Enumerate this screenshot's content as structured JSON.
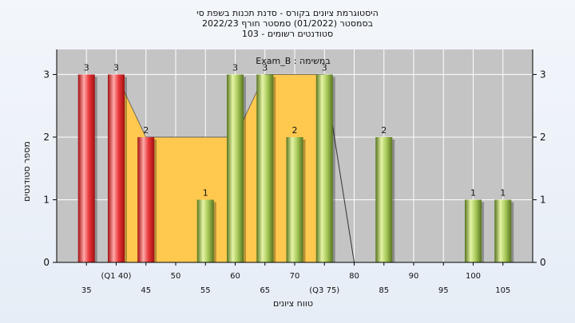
{
  "titles": [
    "היסטוגרמת ציונים בקורס - סדנת תכנות בשפת סי",
    "בסמסטר  (01/2022)  סמסטר חורף  2022/23",
    "סטודנטים רשומים - 103"
  ],
  "chart_data": {
    "type": "bar",
    "legend_text": "Exam_B : במשימה",
    "xlabel": "טווח ציונים",
    "ylabel": "מספר סטודנטים",
    "ylim": [
      0,
      3.4
    ],
    "yticks": [
      0,
      1,
      2,
      3
    ],
    "xlim": [
      30,
      110
    ],
    "x_tick_labels": [
      {
        "x": 35,
        "label": "35",
        "row": 2
      },
      {
        "x": 40,
        "label": "(Q1 40)",
        "row": 1
      },
      {
        "x": 45,
        "label": "45",
        "row": 2
      },
      {
        "x": 50,
        "label": "50",
        "row": 1
      },
      {
        "x": 55,
        "label": "55",
        "row": 2
      },
      {
        "x": 60,
        "label": "60",
        "row": 1
      },
      {
        "x": 65,
        "label": "65",
        "row": 2
      },
      {
        "x": 70,
        "label": "70",
        "row": 1
      },
      {
        "x": 75,
        "label": "(Q3 75)",
        "row": 2
      },
      {
        "x": 80,
        "label": "80",
        "row": 1
      },
      {
        "x": 85,
        "label": "85",
        "row": 2
      },
      {
        "x": 90,
        "label": "90",
        "row": 1
      },
      {
        "x": 95,
        "label": "95",
        "row": 2
      },
      {
        "x": 100,
        "label": "100",
        "row": 1
      },
      {
        "x": 105,
        "label": "105",
        "row": 2
      }
    ],
    "bars": [
      {
        "x": 35,
        "value": 3,
        "group": "red"
      },
      {
        "x": 40,
        "value": 3,
        "group": "red"
      },
      {
        "x": 45,
        "value": 2,
        "group": "red"
      },
      {
        "x": 55,
        "value": 1,
        "group": "green"
      },
      {
        "x": 60,
        "value": 3,
        "group": "green"
      },
      {
        "x": 65,
        "value": 3,
        "group": "green"
      },
      {
        "x": 70,
        "value": 2,
        "group": "green"
      },
      {
        "x": 75,
        "value": 3,
        "group": "green"
      },
      {
        "x": 85,
        "value": 2,
        "group": "green"
      },
      {
        "x": 100,
        "value": 1,
        "group": "green"
      },
      {
        "x": 105,
        "value": 1,
        "group": "green"
      }
    ],
    "area": [
      [
        40,
        3
      ],
      [
        45,
        2
      ],
      [
        60,
        2
      ],
      [
        65,
        3
      ],
      [
        75,
        3
      ],
      [
        75,
        0
      ],
      [
        40,
        0
      ]
    ],
    "line": [
      [
        75,
        3
      ],
      [
        80,
        0
      ]
    ],
    "grid": true,
    "colors": {
      "plot_bg": "#c4c4c4",
      "area": "#ffc94f",
      "red_light": "#ffaaa8",
      "red_mid": "#e8373a",
      "red_dark": "#a30f10",
      "green_light": "#e6f4a6",
      "green_mid": "#a8c95a",
      "green_dark": "#58751f",
      "grid": "#ffffff",
      "axis": "#000000"
    }
  }
}
